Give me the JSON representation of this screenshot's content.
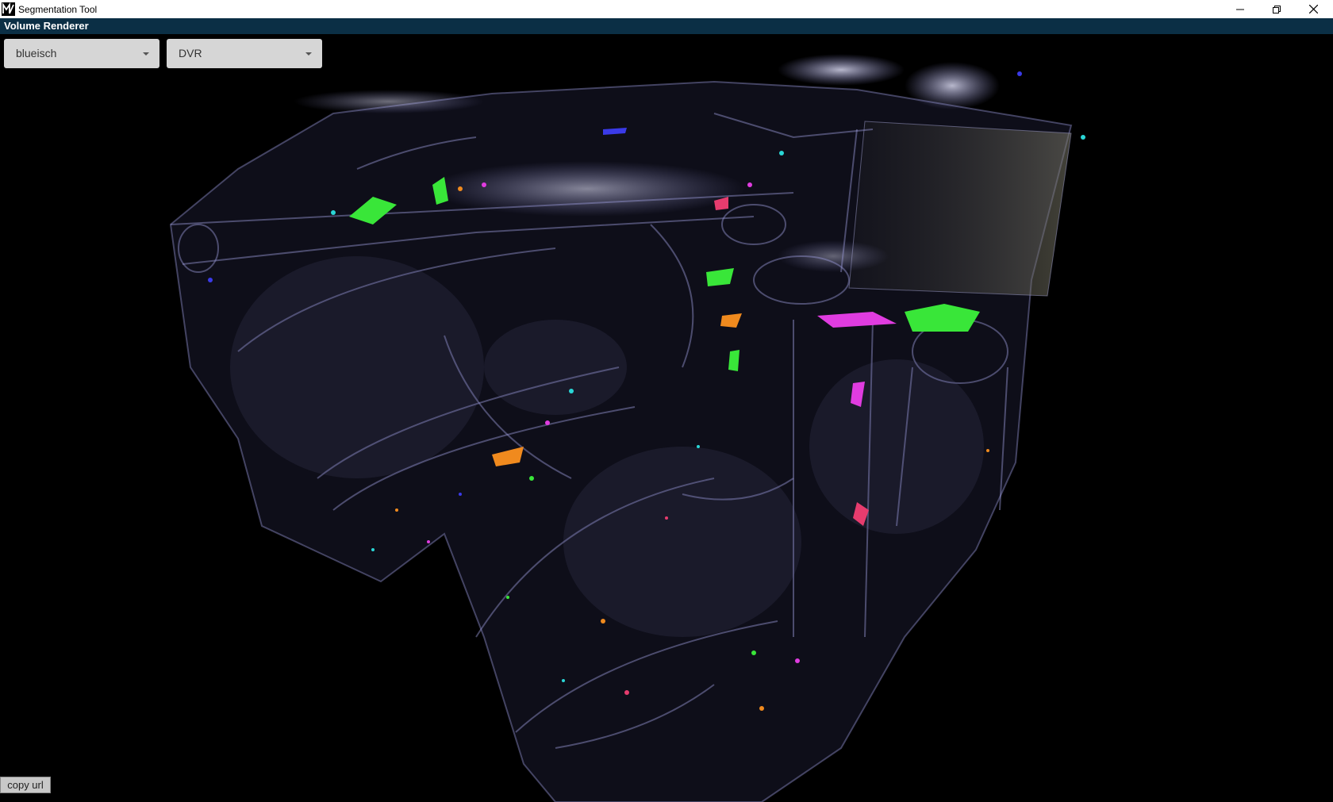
{
  "window": {
    "title": "Segmentation Tool",
    "icon": "app-logo-icon",
    "controls": [
      "minimize-icon",
      "restore-icon",
      "close-icon"
    ]
  },
  "panel": {
    "title": "Volume Renderer"
  },
  "controls": {
    "colormap": {
      "value": "blueisch"
    },
    "render_mode": {
      "value": "DVR"
    },
    "copy_url_label": "copy url"
  },
  "colors": {
    "panel_header": "#0b2f45",
    "background": "#000000",
    "volume_tint": "#9a9ad8",
    "segment_colors": [
      "#39e639",
      "#e03ce0",
      "#f08a1e",
      "#2ad6d6",
      "#3a3ae8",
      "#e63c6e"
    ]
  }
}
